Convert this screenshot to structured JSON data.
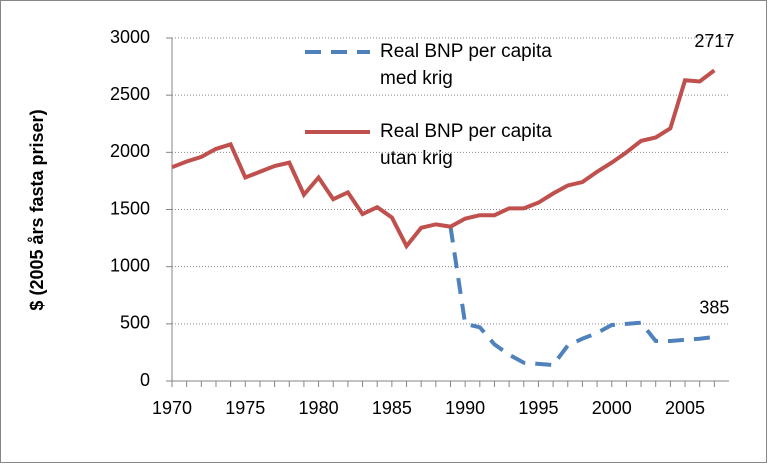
{
  "chart_data": {
    "type": "line",
    "y_label": "$ (2005 års fasta priser)",
    "x": [
      1970,
      1971,
      1972,
      1973,
      1974,
      1975,
      1976,
      1977,
      1978,
      1979,
      1980,
      1981,
      1982,
      1983,
      1984,
      1985,
      1986,
      1987,
      1988,
      1989,
      1990,
      1991,
      1992,
      1993,
      1994,
      1995,
      1996,
      1997,
      1998,
      1999,
      2000,
      2001,
      2002,
      2003,
      2004,
      2005,
      2006,
      2007
    ],
    "series": [
      {
        "name": "Real BNP per capita med krig",
        "color": "#4f81bd",
        "dash": "dashed",
        "values": [
          null,
          null,
          null,
          null,
          null,
          null,
          null,
          null,
          null,
          null,
          null,
          null,
          null,
          null,
          null,
          null,
          null,
          null,
          null,
          1350,
          500,
          470,
          320,
          230,
          160,
          150,
          140,
          310,
          370,
          420,
          490,
          500,
          510,
          350,
          350,
          360,
          370,
          385
        ],
        "value_labels": [
          null,
          null,
          null,
          null,
          null,
          null,
          null,
          null,
          null,
          null,
          null,
          null,
          null,
          null,
          null,
          null,
          null,
          null,
          null,
          null,
          null,
          null,
          null,
          null,
          null,
          null,
          null,
          null,
          null,
          null,
          null,
          null,
          null,
          null,
          null,
          null,
          null,
          "385"
        ]
      },
      {
        "name": "Real BNP per capita utan krig",
        "color": "#c0504d",
        "dash": "solid",
        "values": [
          1870,
          1920,
          1960,
          2030,
          2070,
          1780,
          1830,
          1880,
          1910,
          1630,
          1780,
          1590,
          1650,
          1460,
          1520,
          1430,
          1180,
          1340,
          1370,
          1350,
          1420,
          1450,
          1450,
          1510,
          1510,
          1560,
          1640,
          1710,
          1740,
          1830,
          1910,
          2000,
          2100,
          2130,
          2210,
          2630,
          2620,
          2717
        ],
        "value_labels": [
          null,
          null,
          null,
          null,
          null,
          null,
          null,
          null,
          null,
          null,
          null,
          null,
          null,
          null,
          null,
          null,
          null,
          null,
          null,
          null,
          null,
          null,
          null,
          null,
          null,
          null,
          null,
          null,
          null,
          null,
          null,
          null,
          null,
          null,
          null,
          null,
          null,
          "2717"
        ]
      }
    ],
    "xlim": [
      1970,
      2008
    ],
    "xticks": [
      1970,
      1975,
      1980,
      1985,
      1990,
      1995,
      2000,
      2005
    ],
    "ylim": [
      0,
      3000
    ],
    "yticks": [
      0,
      500,
      1000,
      1500,
      2000,
      2500,
      3000
    ],
    "grid": true,
    "legend": "top"
  }
}
